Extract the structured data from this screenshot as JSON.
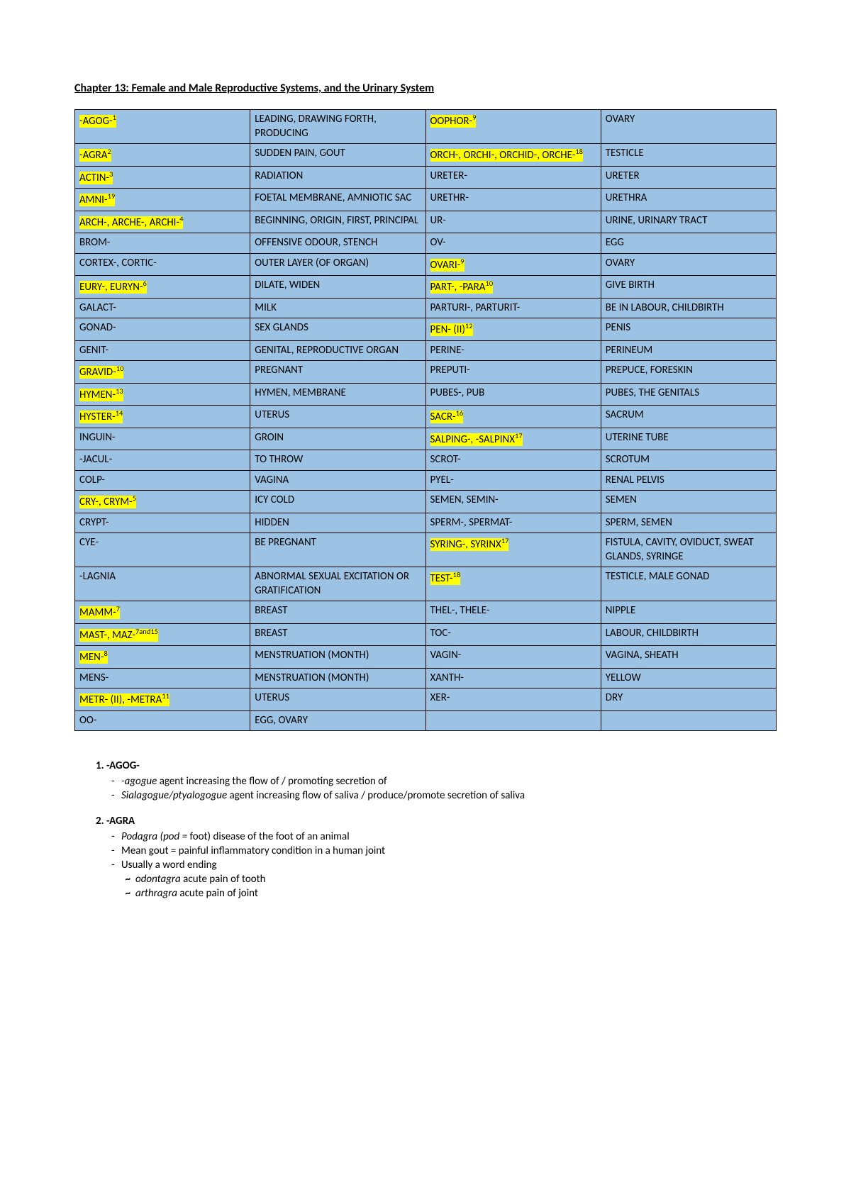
{
  "title": "Chapter 13: Female and Male Reproductive Systems, and the Urinary System",
  "colors": {
    "cell_bg": "#9cc3e4",
    "highlight": "#ffff00",
    "border": "#000000"
  },
  "table": {
    "columns": 4,
    "rows": [
      [
        {
          "t": "-AGOG-",
          "sup": "1",
          "hl": true
        },
        {
          "t": "LEADING, DRAWING FORTH, PRODUCING"
        },
        {
          "t": "OOPHOR-",
          "sup": "9",
          "hl": true
        },
        {
          "t": "OVARY"
        }
      ],
      [
        {
          "t": "-AGRA",
          "sup": "2",
          "hl": true
        },
        {
          "t": "SUDDEN PAIN, GOUT"
        },
        {
          "t": "ORCH-, ORCHI-, ORCHID-, ORCHE-",
          "sup": "18",
          "hl": true
        },
        {
          "t": "TESTICLE"
        }
      ],
      [
        {
          "t": "ACTIN-",
          "sup": "3",
          "hl": true
        },
        {
          "t": "RADIATION"
        },
        {
          "t": "URETER-"
        },
        {
          "t": "URETER"
        }
      ],
      [
        {
          "t": "AMNI-",
          "sup": "19",
          "hl": true
        },
        {
          "t": "FOETAL MEMBRANE, AMNIOTIC SAC"
        },
        {
          "t": "URETHR-"
        },
        {
          "t": "URETHRA"
        }
      ],
      [
        {
          "t": "ARCH-, ARCHE-, ARCHI-",
          "sup": "4",
          "hl": true
        },
        {
          "t": "BEGINNING, ORIGIN, FIRST, PRINCIPAL"
        },
        {
          "t": "UR-"
        },
        {
          "t": "URINE, URINARY TRACT"
        }
      ],
      [
        {
          "t": "BROM-"
        },
        {
          "t": "OFFENSIVE ODOUR, STENCH"
        },
        {
          "t": "OV-"
        },
        {
          "t": "EGG"
        }
      ],
      [
        {
          "t": "CORTEX-, CORTIC-"
        },
        {
          "t": "OUTER LAYER (OF ORGAN)"
        },
        {
          "t": "OVARI-",
          "sup": "9",
          "hl": true
        },
        {
          "t": "OVARY"
        }
      ],
      [
        {
          "t": "EURY-, EURYN-",
          "sup": "6",
          "hl": true
        },
        {
          "t": "DILATE, WIDEN"
        },
        {
          "t": "PART-, -PARA",
          "sup": "10",
          "hl": true
        },
        {
          "t": "GIVE BIRTH"
        }
      ],
      [
        {
          "t": "GALACT-"
        },
        {
          "t": "MILK"
        },
        {
          "t": "PARTURI-, PARTURIT-"
        },
        {
          "t": "BE IN LABOUR, CHILDBIRTH"
        }
      ],
      [
        {
          "t": "GONAD-"
        },
        {
          "t": "SEX GLANDS"
        },
        {
          "t": "PEN- (II)",
          "sup": "12",
          "hl": true
        },
        {
          "t": "PENIS"
        }
      ],
      [
        {
          "t": "GENIT-"
        },
        {
          "t": "GENITAL, REPRODUCTIVE ORGAN"
        },
        {
          "t": "PERINE-"
        },
        {
          "t": "PERINEUM"
        }
      ],
      [
        {
          "t": "GRAVID-",
          "sup": "10",
          "hl": true
        },
        {
          "t": "PREGNANT"
        },
        {
          "t": "PREPUTI-"
        },
        {
          "t": "PREPUCE, FORESKIN"
        }
      ],
      [
        {
          "t": "HYMEN-",
          "sup": "13",
          "hl": true
        },
        {
          "t": "HYMEN, MEMBRANE"
        },
        {
          "t": "PUBES-, PUB"
        },
        {
          "t": "PUBES, THE GENITALS"
        }
      ],
      [
        {
          "t": "HYSTER-",
          "sup": "14",
          "hl": true
        },
        {
          "t": "UTERUS"
        },
        {
          "t": "SACR-",
          "sup": "16",
          "hl": true
        },
        {
          "t": "SACRUM"
        }
      ],
      [
        {
          "t": "INGUIN-"
        },
        {
          "t": "GROIN"
        },
        {
          "t": "SALPING-, -SALPINX",
          "sup": "17",
          "hl": true
        },
        {
          "t": "UTERINE TUBE"
        }
      ],
      [
        {
          "t": "-JACUL-"
        },
        {
          "t": "TO THROW"
        },
        {
          "t": "SCROT-"
        },
        {
          "t": "SCROTUM"
        }
      ],
      [
        {
          "t": "COLP-"
        },
        {
          "t": "VAGINA"
        },
        {
          "t": "PYEL-"
        },
        {
          "t": "RENAL PELVIS"
        }
      ],
      [
        {
          "t": "CRY-, CRYM-",
          "sup": "5",
          "hl": true
        },
        {
          "t": "ICY COLD"
        },
        {
          "t": "SEMEN, SEMIN-"
        },
        {
          "t": "SEMEN"
        }
      ],
      [
        {
          "t": "CRYPT-"
        },
        {
          "t": "HIDDEN"
        },
        {
          "t": "SPERM-, SPERMAT-"
        },
        {
          "t": "SPERM, SEMEN"
        }
      ],
      [
        {
          "t": "CYE-"
        },
        {
          "t": "BE PREGNANT"
        },
        {
          "t": "SYRING-, SYRINX",
          "sup": "17",
          "hl": true
        },
        {
          "t": "FISTULA, CAVITY, OVIDUCT, SWEAT GLANDS, SYRINGE"
        }
      ],
      [
        {
          "t": "-LAGNIA"
        },
        {
          "t": "ABNORMAL SEXUAL EXCITATION OR GRATIFICATION"
        },
        {
          "t": "TEST-",
          "sup": "18",
          "hl": true
        },
        {
          "t": "TESTICLE, MALE GONAD"
        }
      ],
      [
        {
          "t": "MAMM-",
          "sup": "7",
          "hl": true
        },
        {
          "t": "BREAST"
        },
        {
          "t": "THEL-, THELE-"
        },
        {
          "t": "NIPPLE"
        }
      ],
      [
        {
          "t": "MAST-, MAZ-",
          "sup": "7and15",
          "hl": true
        },
        {
          "t": "BREAST"
        },
        {
          "t": "TOC-"
        },
        {
          "t": "LABOUR, CHILDBIRTH"
        }
      ],
      [
        {
          "t": "MEN-",
          "sup": "8",
          "hl": true
        },
        {
          "t": "MENSTRUATION (MONTH)"
        },
        {
          "t": "VAGIN-"
        },
        {
          "t": "VAGINA, SHEATH"
        }
      ],
      [
        {
          "t": "MENS-"
        },
        {
          "t": "MENSTRUATION (MONTH)"
        },
        {
          "t": "XANTH-"
        },
        {
          "t": "YELLOW"
        }
      ],
      [
        {
          "t": "METR- (II), -METRA",
          "sup": "11",
          "hl": true
        },
        {
          "t": "UTERUS"
        },
        {
          "t": "XER-"
        },
        {
          "t": "DRY"
        }
      ],
      [
        {
          "t": "OO-"
        },
        {
          "t": "EGG, OVARY"
        },
        {
          "t": ""
        },
        {
          "t": ""
        }
      ]
    ]
  },
  "notes": [
    {
      "num": "1.",
      "head": "-AGOG-",
      "subs": [
        {
          "italic": "-agogue",
          "rest": "   agent increasing the flow of / promoting secretion of"
        },
        {
          "italic": "Sialagogue/ptyalogogue",
          "rest": "   agent increasing flow of saliva / produce/promote secretion of saliva"
        }
      ],
      "tildes": []
    },
    {
      "num": "2.",
      "head": "-AGRA",
      "subs": [
        {
          "italic": "Podagra (pod = ",
          "rest": "foot)   disease of the foot of an animal"
        },
        {
          "italic": "",
          "rest": "Mean gout = painful inflammatory condition in a human joint"
        },
        {
          "italic": "",
          "rest": "Usually a word ending"
        }
      ],
      "tildes": [
        {
          "italic": "odontagra",
          "rest": "   acute pain of tooth"
        },
        {
          "italic": "arthragra",
          "rest": "   acute pain of joint"
        }
      ]
    }
  ]
}
